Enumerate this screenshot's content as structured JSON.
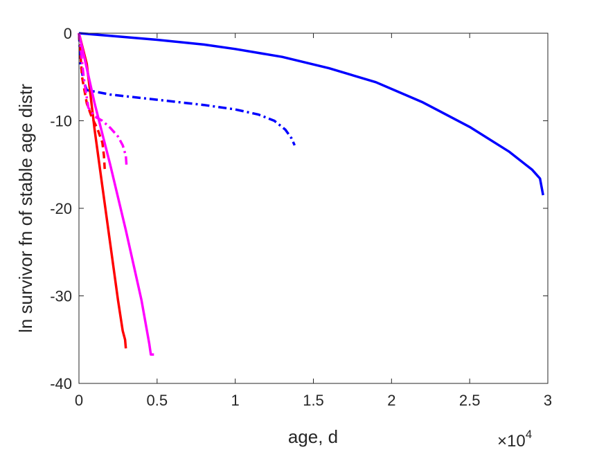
{
  "chart_data": {
    "type": "line",
    "xlabel": "age, d",
    "ylabel": "ln survivor fn of stable age distr",
    "x_exponent": {
      "base": "×10",
      "power": "4"
    },
    "xlim": [
      0,
      3
    ],
    "ylim": [
      -40,
      0
    ],
    "x_ticks": [
      "0",
      "0.5",
      "1",
      "1.5",
      "2",
      "2.5",
      "3"
    ],
    "y_ticks": [
      "0",
      "-10",
      "-20",
      "-30",
      "-40"
    ],
    "grid": false,
    "legend": "none",
    "series": [
      {
        "color": "#0000ff",
        "style": "solid",
        "x": [
          0,
          0.2,
          0.5,
          0.8,
          1.0,
          1.3,
          1.6,
          1.9,
          2.2,
          2.5,
          2.75,
          2.9,
          2.95,
          2.97
        ],
        "y": [
          0,
          -0.3,
          -0.75,
          -1.3,
          -1.8,
          -2.7,
          -4.0,
          -5.6,
          -7.9,
          -10.7,
          -13.5,
          -15.6,
          -16.6,
          -18.5
        ]
      },
      {
        "color": "#0000ff",
        "style": "dashdot",
        "x": [
          0,
          0.01,
          0.03,
          0.05,
          0.2,
          0.5,
          0.8,
          1.0,
          1.15,
          1.25,
          1.32,
          1.36,
          1.38
        ],
        "y": [
          0,
          -3.5,
          -5.5,
          -6.5,
          -7.0,
          -7.6,
          -8.2,
          -8.7,
          -9.3,
          -10.0,
          -11.0,
          -12.0,
          -12.8
        ]
      },
      {
        "color": "#ff0000",
        "style": "solid",
        "x": [
          0,
          0.05,
          0.1,
          0.15,
          0.2,
          0.25,
          0.28,
          0.295,
          0.3
        ],
        "y": [
          0,
          -3.5,
          -11.0,
          -17.5,
          -24.0,
          -30.5,
          -34.0,
          -35.0,
          -36.0
        ]
      },
      {
        "color": "#ff0000",
        "style": "dashed",
        "x": [
          0,
          0.02,
          0.05,
          0.08,
          0.12,
          0.15,
          0.16,
          0.165
        ],
        "y": [
          0,
          -5.0,
          -8.0,
          -9.5,
          -11.0,
          -12.5,
          -14.0,
          -15.5
        ]
      },
      {
        "color": "#ff00ff",
        "style": "solid",
        "x": [
          0,
          0.05,
          0.1,
          0.15,
          0.2,
          0.3,
          0.4,
          0.45,
          0.46,
          0.48
        ],
        "y": [
          0,
          -4.0,
          -8.0,
          -11.5,
          -15.0,
          -22.5,
          -30.5,
          -35.5,
          -36.7,
          -36.7
        ]
      },
      {
        "color": "#ff00ff",
        "style": "dashdot",
        "x": [
          0,
          0.01,
          0.03,
          0.06,
          0.1,
          0.15,
          0.2,
          0.25,
          0.28,
          0.3,
          0.305
        ],
        "y": [
          0,
          -1.5,
          -5.0,
          -8.5,
          -9.5,
          -10.0,
          -10.8,
          -11.8,
          -12.8,
          -14.0,
          -15.3
        ]
      }
    ]
  }
}
